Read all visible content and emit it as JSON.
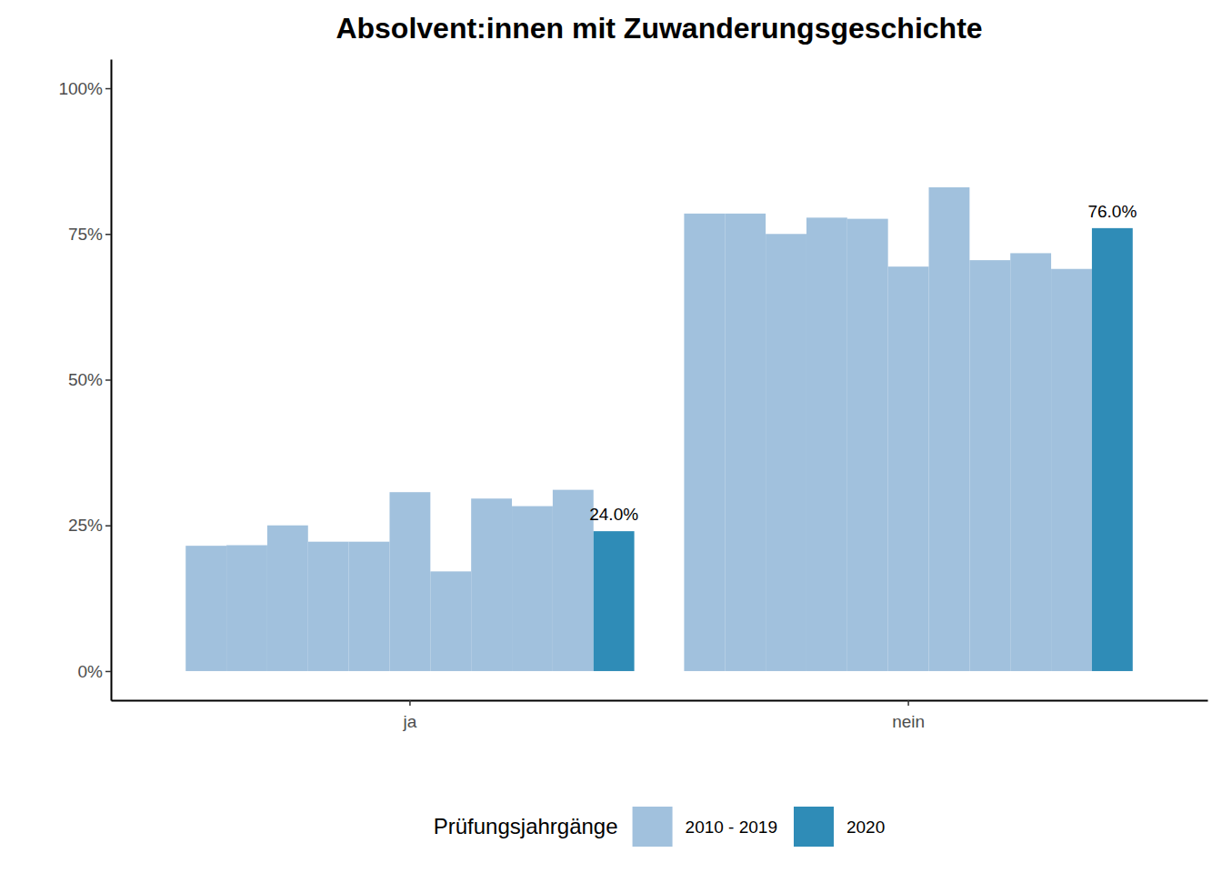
{
  "chart_data": {
    "type": "bar",
    "title": "Absolvent:innen mit Zuwanderungsgeschichte",
    "legend_title": "Prüfungsjahrgänge",
    "legend": "bottom",
    "grid": false,
    "categories": [
      "ja",
      "nein"
    ],
    "ylim": [
      -5,
      105
    ],
    "yticks": [
      {
        "value": 0,
        "label": "0%"
      },
      {
        "value": 25,
        "label": "25%"
      },
      {
        "value": 50,
        "label": "50%"
      },
      {
        "value": 75,
        "label": "75%"
      },
      {
        "value": 100,
        "label": "100%"
      }
    ],
    "series": [
      {
        "name": "2010 - 2019",
        "color": "#a1c1dd",
        "values": [
          21.5,
          78.5
        ]
      },
      {
        "name": "2010 - 2019",
        "color": "#a1c1dd",
        "values": [
          21.6,
          78.5
        ]
      },
      {
        "name": "2010 - 2019",
        "color": "#a1c1dd",
        "values": [
          25.0,
          75.0
        ]
      },
      {
        "name": "2010 - 2019",
        "color": "#a1c1dd",
        "values": [
          22.2,
          77.8
        ]
      },
      {
        "name": "2010 - 2019",
        "color": "#a1c1dd",
        "values": [
          22.2,
          77.6
        ]
      },
      {
        "name": "2010 - 2019",
        "color": "#a1c1dd",
        "values": [
          30.7,
          69.4
        ]
      },
      {
        "name": "2010 - 2019",
        "color": "#a1c1dd",
        "values": [
          17.1,
          83.0
        ]
      },
      {
        "name": "2010 - 2019",
        "color": "#a1c1dd",
        "values": [
          29.6,
          70.5
        ]
      },
      {
        "name": "2010 - 2019",
        "color": "#a1c1dd",
        "values": [
          28.3,
          71.7
        ]
      },
      {
        "name": "2010 - 2019",
        "color": "#a1c1dd",
        "values": [
          31.1,
          69.0
        ]
      },
      {
        "name": "2020",
        "color": "#2f8cb7",
        "values": [
          24.0,
          76.0
        ],
        "data_labels": true,
        "value_labels": [
          "24.0%",
          "76.0%"
        ]
      }
    ]
  }
}
